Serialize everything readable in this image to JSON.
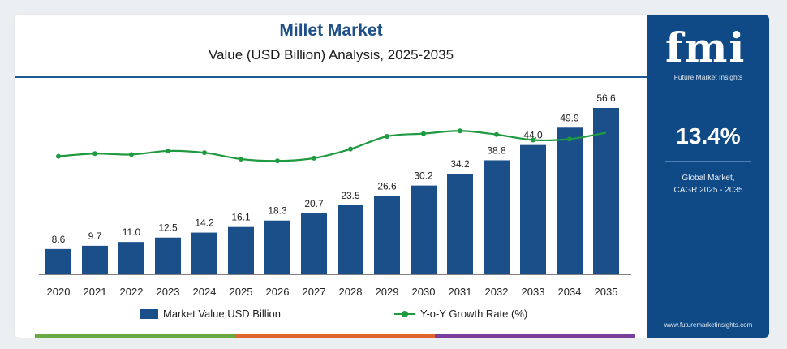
{
  "header": {
    "title": "Millet Market",
    "subtitle": "Value (USD Billion) Analysis, 2025-2035"
  },
  "chart_data": {
    "type": "bar",
    "categories": [
      "2020",
      "2021",
      "2022",
      "2023",
      "2024",
      "2025",
      "2026",
      "2027",
      "2028",
      "2029",
      "2030",
      "2031",
      "2032",
      "2033",
      "2034",
      "2035"
    ],
    "series": [
      {
        "name": "Market Value USD Billion",
        "type": "bar",
        "values": [
          8.6,
          9.7,
          11.0,
          12.5,
          14.2,
          16.1,
          18.3,
          20.7,
          23.5,
          26.6,
          30.2,
          34.2,
          38.8,
          44.0,
          49.9,
          56.6
        ]
      },
      {
        "name": "Y-o-Y Growth Rate (%)",
        "type": "line",
        "values": [
          12.8,
          13.1,
          13.0,
          13.4,
          13.2,
          12.5,
          12.3,
          12.6,
          13.6,
          15.0,
          15.3,
          15.6,
          15.2,
          14.6,
          14.7,
          15.4
        ]
      }
    ],
    "ylim": [
      0,
      60
    ],
    "line_ylim": [
      0,
      30
    ],
    "grid": false,
    "legend": "bottom",
    "data_labels": [
      "8.6",
      "9.7",
      "11.0",
      "12.5",
      "14.2",
      "16.1",
      "18.3",
      "20.7",
      "23.5",
      "26.6",
      "30.2",
      "34.2",
      "38.8",
      "44.0",
      "49.9",
      "56.6"
    ]
  },
  "legend": {
    "bar_label": "Market Value USD Billion",
    "line_label": "Y-o-Y Growth Rate (%)"
  },
  "sidebar": {
    "logo": "fmi",
    "logo_sub": "Future Market Insights",
    "cagr_value": "13.4%",
    "cagr_line1": "Global Market,",
    "cagr_line2": "CAGR 2025 - 2035",
    "website": "www.futuremarketinsights.com"
  },
  "colors": {
    "bar": "#1b4f8a",
    "line": "#1f9a40",
    "accent_blue": "#0f4a86",
    "strip": [
      "#6aa842",
      "#e0662e",
      "#7a3f9a"
    ]
  }
}
